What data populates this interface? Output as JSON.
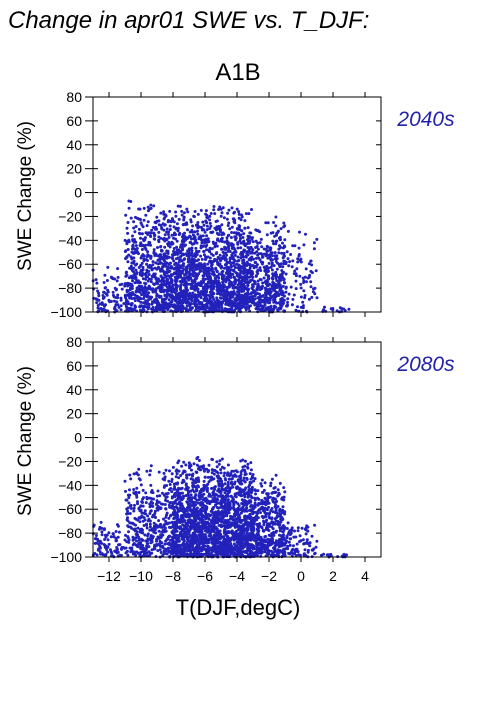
{
  "figure": {
    "title": "Change in apr01 SWE vs. T_DJF:",
    "scenario": "A1B",
    "ylabel": "SWE Change (%)",
    "xlabel": "T(DJF,degC)",
    "point_color": "#2222bb",
    "label_color": "#2222aa"
  },
  "chart_data": [
    {
      "type": "scatter",
      "panel_label": "2040s",
      "xlim": [
        -13,
        5
      ],
      "ylim": [
        -100,
        80
      ],
      "xticks": [
        -12,
        -10,
        -8,
        -6,
        -4,
        -2,
        0,
        2,
        4
      ],
      "yticks": [
        -100,
        -80,
        -60,
        -40,
        -20,
        0,
        20,
        40,
        60,
        80
      ],
      "xtick_labels_shown": false,
      "grid": false,
      "cloud_summary": [
        {
          "x_range": [
            -13,
            -11
          ],
          "y_range": [
            -100,
            -60
          ],
          "density": "low"
        },
        {
          "x_range": [
            -11,
            -9
          ],
          "y_range": [
            -100,
            -5
          ],
          "density": "medium"
        },
        {
          "x_range": [
            -9,
            -3
          ],
          "y_range": [
            -100,
            -10
          ],
          "density": "high"
        },
        {
          "x_range": [
            -3,
            -1
          ],
          "y_range": [
            -100,
            -20
          ],
          "density": "medium"
        },
        {
          "x_range": [
            -1,
            1
          ],
          "y_range": [
            -100,
            -30
          ],
          "density": "low"
        },
        {
          "x_range": [
            1,
            3
          ],
          "y_range": [
            -100,
            -95
          ],
          "density": "sparse"
        }
      ]
    },
    {
      "type": "scatter",
      "panel_label": "2080s",
      "xlim": [
        -13,
        5
      ],
      "ylim": [
        -100,
        80
      ],
      "xticks": [
        -12,
        -10,
        -8,
        -6,
        -4,
        -2,
        0,
        2,
        4
      ],
      "xtick_labels": [
        "−12",
        "−10",
        "−8",
        "−6",
        "−4",
        "−2",
        "0",
        "2",
        "4"
      ],
      "yticks": [
        -100,
        -80,
        -60,
        -40,
        -20,
        0,
        20,
        40,
        60,
        80
      ],
      "grid": false,
      "cloud_summary": [
        {
          "x_range": [
            -13,
            -11
          ],
          "y_range": [
            -100,
            -70
          ],
          "density": "low"
        },
        {
          "x_range": [
            -11,
            -8
          ],
          "y_range": [
            -100,
            -20
          ],
          "density": "medium"
        },
        {
          "x_range": [
            -8,
            -3
          ],
          "y_range": [
            -100,
            -15
          ],
          "density": "high"
        },
        {
          "x_range": [
            -3,
            -1
          ],
          "y_range": [
            -100,
            -30
          ],
          "density": "medium"
        },
        {
          "x_range": [
            -1,
            1
          ],
          "y_range": [
            -100,
            -70
          ],
          "density": "low"
        },
        {
          "x_range": [
            1,
            3
          ],
          "y_range": [
            -100,
            -97
          ],
          "density": "sparse"
        }
      ]
    }
  ]
}
